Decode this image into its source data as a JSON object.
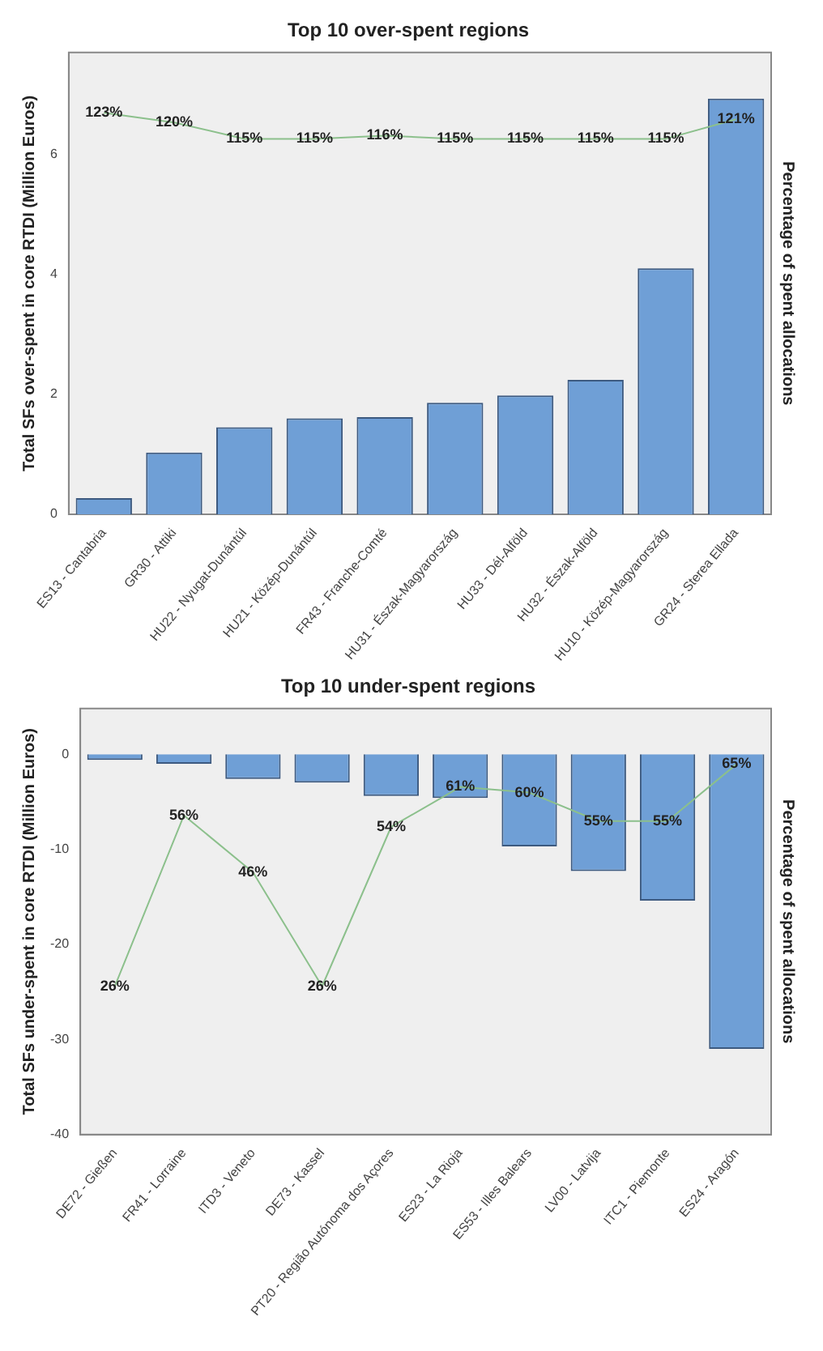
{
  "chart_data": [
    {
      "type": "bar",
      "title": "Top 10 over-spent regions",
      "ylabel": "Total SFs over-spent in core RTDI (Million Euros)",
      "y2label": "Percentage of spent allocations",
      "categories": [
        "ES13 - Cantabria",
        "GR30 - Attiki",
        "HU22 - Nyugat-Dunántúl",
        "HU21 - Közép-Dunántúl",
        "FR43 - Franche-Comté",
        "HU31 - Észak-Magyarország",
        "HU33 - Dél-Alföld",
        "HU32 - Észak-Alföld",
        "HU10 - Közép-Magyarország",
        "GR24 - Sterea Ellada"
      ],
      "series": [
        {
          "type": "bar",
          "color": "#6f9fd6",
          "values": [
            0.27,
            1.03,
            1.45,
            1.6,
            1.62,
            1.86,
            1.98,
            2.24,
            4.1,
            6.93
          ]
        },
        {
          "type": "line",
          "axis": "y2",
          "color": "#8cc08c",
          "values": [
            123,
            120,
            115,
            115,
            116,
            115,
            115,
            115,
            115,
            121
          ],
          "value_labels": [
            "123%",
            "120%",
            "115%",
            "115%",
            "116%",
            "115%",
            "115%",
            "115%",
            "115%",
            "121%"
          ]
        }
      ],
      "ylim": [
        0,
        7.7
      ],
      "yticks": [
        0,
        2,
        4,
        6
      ],
      "grid": false,
      "legend": false,
      "marker": "none"
    },
    {
      "type": "bar",
      "title": "Top 10 under-spent regions",
      "ylabel": "Total SFs under-spent in core RTDI (Million Euros)",
      "y2label": "Percentage of spent allocations",
      "categories": [
        "DE72 - Gießen",
        "FR41 - Lorraine",
        "ITD3 - Veneto",
        "DE73 - Kassel",
        "PT20 - Região Autónoma dos Açores",
        "ES23 - La Rioja",
        "ES53 - Illes Balears",
        "LV00 - Latvija",
        "ITC1 - Piemonte",
        "ES24 - Aragón"
      ],
      "series": [
        {
          "type": "bar",
          "color": "#6f9fd6",
          "values": [
            -0.6,
            -1.0,
            -2.6,
            -3.0,
            -4.4,
            -4.6,
            -9.7,
            -12.3,
            -15.4,
            -31
          ]
        },
        {
          "type": "line",
          "axis": "y2",
          "color": "#8cc08c",
          "values": [
            26,
            56,
            46,
            26,
            54,
            61,
            60,
            55,
            55,
            65
          ],
          "value_labels": [
            "26%",
            "56%",
            "46%",
            "26%",
            "54%",
            "61%",
            "60%",
            "55%",
            "55%",
            "65%"
          ]
        }
      ],
      "ylim": [
        -40,
        4.8
      ],
      "yticks": [
        -40,
        -30,
        -20,
        -10,
        0
      ],
      "grid": false,
      "legend": false,
      "marker": "none"
    }
  ]
}
